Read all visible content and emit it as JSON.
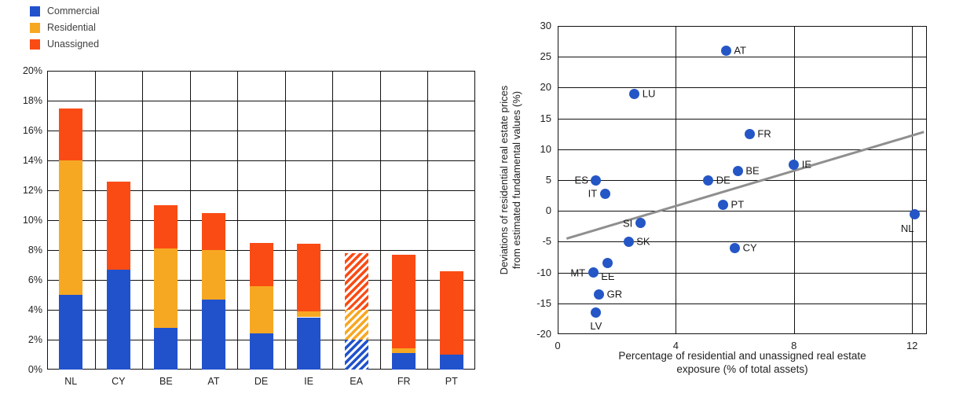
{
  "figure": {
    "background": "#ffffff",
    "grid_color": "#111111"
  },
  "chart_data": [
    {
      "type": "bar",
      "stacked": true,
      "title": "",
      "categories": [
        "NL",
        "CY",
        "BE",
        "AT",
        "DE",
        "IE",
        "EA",
        "FR",
        "PT"
      ],
      "series": [
        {
          "name": "Commercial",
          "color": "#2152cc",
          "values": [
            5.0,
            6.7,
            2.8,
            4.7,
            2.4,
            3.5,
            2.0,
            1.1,
            1.0
          ]
        },
        {
          "name": "Residential",
          "color": "#f7a823",
          "values": [
            9.0,
            0.0,
            5.3,
            3.3,
            3.2,
            0.4,
            2.0,
            0.3,
            0.0
          ]
        },
        {
          "name": "Unassigned",
          "color": "#fa4b14",
          "values": [
            3.5,
            5.9,
            2.9,
            2.5,
            2.9,
            4.5,
            3.8,
            6.3,
            5.6
          ]
        }
      ],
      "hatched_category": "EA",
      "ylim": [
        0,
        20
      ],
      "ytick_step": 2,
      "ytick_suffix": "%",
      "grid": true,
      "legend_position": "top-left"
    },
    {
      "type": "scatter",
      "xlim": [
        0,
        12.5
      ],
      "xticks": [
        0,
        4,
        8,
        12
      ],
      "ylim": [
        -20,
        30
      ],
      "yticks": [
        30,
        25,
        20,
        15,
        10,
        5,
        0,
        -5,
        -10,
        -15,
        -20
      ],
      "xlabel_lines": [
        "Percentage of residential and unassigned real estate",
        "exposure (% of total assets)"
      ],
      "ylabel_lines": [
        "Deviations of residential real estate prices",
        "from estimated fundamental values (%)"
      ],
      "point_color": "#2456c6",
      "points": [
        {
          "label": "AT",
          "x": 5.7,
          "y": 26,
          "pos": "right"
        },
        {
          "label": "LU",
          "x": 2.6,
          "y": 19,
          "pos": "right"
        },
        {
          "label": "FR",
          "x": 6.5,
          "y": 12.5,
          "pos": "right"
        },
        {
          "label": "IE",
          "x": 8.0,
          "y": 7.5,
          "pos": "right"
        },
        {
          "label": "BE",
          "x": 6.1,
          "y": 6.5,
          "pos": "right"
        },
        {
          "label": "DE",
          "x": 5.1,
          "y": 5.0,
          "pos": "right"
        },
        {
          "label": "ES",
          "x": 1.3,
          "y": 5.0,
          "pos": "left"
        },
        {
          "label": "IT",
          "x": 1.6,
          "y": 2.8,
          "pos": "left"
        },
        {
          "label": "PT",
          "x": 5.6,
          "y": 1.0,
          "pos": "right"
        },
        {
          "label": "SI",
          "x": 2.8,
          "y": -2.0,
          "pos": "left"
        },
        {
          "label": "SK",
          "x": 2.4,
          "y": -5.0,
          "pos": "right"
        },
        {
          "label": "CY",
          "x": 6.0,
          "y": -6.0,
          "pos": "right"
        },
        {
          "label": "EE",
          "x": 1.7,
          "y": -8.5,
          "pos": "below"
        },
        {
          "label": "MT",
          "x": 1.2,
          "y": -10.0,
          "pos": "left"
        },
        {
          "label": "GR",
          "x": 1.4,
          "y": -13.5,
          "pos": "right"
        },
        {
          "label": "LV",
          "x": 1.3,
          "y": -16.5,
          "pos": "below"
        },
        {
          "label": "NL",
          "x": 12.1,
          "y": -0.5,
          "pos": "below-left"
        }
      ],
      "trendline": {
        "x1": 0.3,
        "y1": -4.5,
        "x2": 12.4,
        "y2": 12.8,
        "color": "#8f8f8f"
      },
      "grid": true
    }
  ]
}
